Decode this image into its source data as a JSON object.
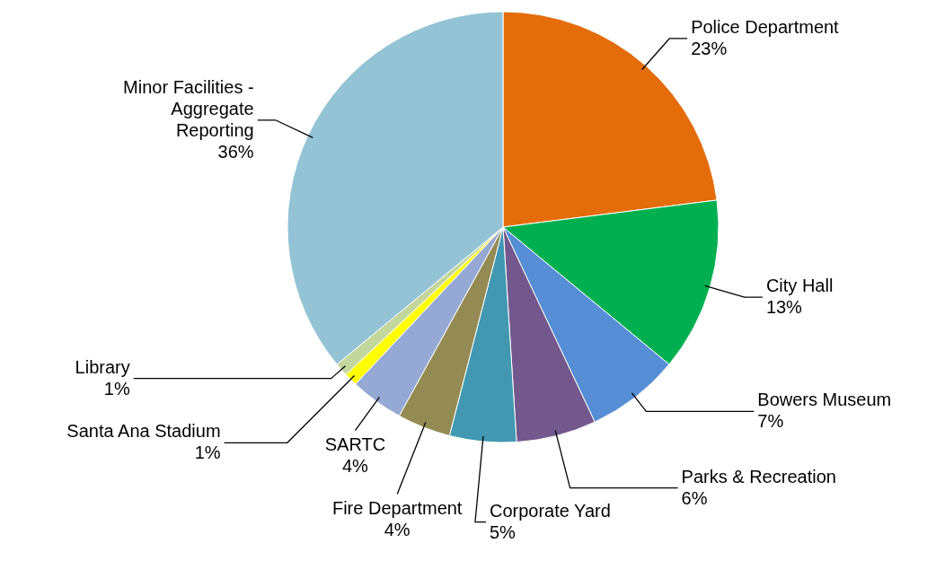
{
  "chart_data": {
    "type": "pie",
    "categories": [
      "Police Department",
      "City Hall",
      "Bowers Museum",
      "Parks & Recreation",
      "Corporate Yard",
      "Fire Department",
      "SARTC",
      "Santa Ana Stadium",
      "Library",
      "Minor Facilities - Aggregate Reporting"
    ],
    "values": [
      23,
      13,
      7,
      6,
      5,
      4,
      4,
      1,
      1,
      36
    ],
    "value_labels": [
      "23%",
      "13%",
      "7%",
      "6%",
      "5%",
      "4%",
      "4%",
      "1%",
      "1%",
      "36%"
    ],
    "colors": [
      "#e46c0a",
      "#00b050",
      "#558ed5",
      "#72588c",
      "#4198b0",
      "#948a54",
      "#95a9d4",
      "#ffff00",
      "#c3d69b",
      "#93c3d5"
    ],
    "legend": false
  }
}
